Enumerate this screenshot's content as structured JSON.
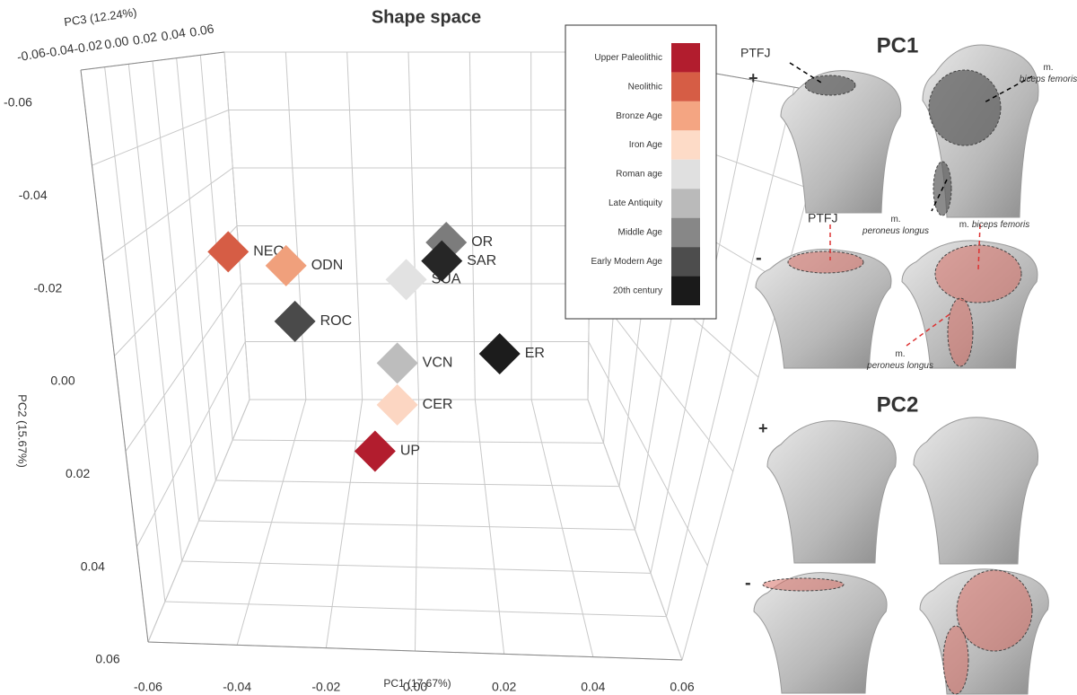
{
  "chart_data": {
    "type": "scatter",
    "title": "Shape space",
    "x_label": "PC1 (17.67%)",
    "y_label": "PC2 (15.67%)",
    "z_label": "PC3 (12.24%)",
    "point_labels": [
      "NEO",
      "ODN",
      "ROC",
      "SUA",
      "OR",
      "SAR",
      "VCN",
      "ER",
      "CER",
      "UP"
    ],
    "x": [
      -0.042,
      -0.029,
      -0.027,
      -0.002,
      0.007,
      0.006,
      -0.004,
      0.019,
      -0.004,
      -0.009
    ],
    "values": [
      -0.028,
      -0.025,
      -0.013,
      -0.022,
      -0.03,
      -0.026,
      -0.004,
      -0.006,
      0.005,
      0.015
    ],
    "colors": [
      "#d65d45",
      "#f0a07c",
      "#4a4a4a",
      "#e2e2e2",
      "#7c7c7c",
      "#262626",
      "#bdbdbd",
      "#1c1c1c",
      "#fcd6c2",
      "#b21d2e"
    ],
    "xlim": [
      -0.06,
      0.06
    ],
    "ylim": [
      -0.06,
      0.06
    ],
    "zlim": [
      -0.06,
      0.06
    ],
    "xticks": [
      -0.06,
      -0.04,
      -0.02,
      {
        "value": 0,
        "label": "0.00"
      },
      0.02,
      0.04,
      0.06
    ],
    "yticks": [
      -0.06,
      -0.04,
      -0.02,
      {
        "value": 0,
        "label": "0.00"
      },
      0.02,
      0.04,
      0.06
    ],
    "zticks": [
      -0.06,
      -0.04,
      -0.02,
      {
        "value": 0,
        "label": "0.00"
      },
      0.02,
      0.04,
      0.06
    ],
    "grid": true,
    "legend": {
      "labels": [
        "Upper Paleolithic",
        "Neolithic",
        "Bronze Age",
        "Iron Age",
        "Roman age",
        "Late Antiquity",
        "Middle Age",
        "Early Modern Age",
        "20th century"
      ],
      "colors": [
        "#b21d2e",
        "#d65d45",
        "#f4a582",
        "#fddbc7",
        "#e0e0e0",
        "#bababa",
        "#878787",
        "#4d4d4d",
        "#1a1a1a"
      ]
    }
  },
  "anatomy_panel": {
    "pc1_title": "PC1",
    "pc2_title": "PC2",
    "signs": [
      "+",
      "-",
      "+",
      "-"
    ],
    "labels": [
      "PTFJ",
      "PTFJ"
    ],
    "muscles": [
      {
        "prefix": "m.",
        "name": "biceps femoris"
      },
      {
        "prefix": "m.",
        "name": "peroneus longus"
      },
      {
        "prefix": "m.",
        "name": "biceps femoris"
      },
      {
        "prefix": "m.",
        "name": "peroneus longus"
      }
    ]
  }
}
